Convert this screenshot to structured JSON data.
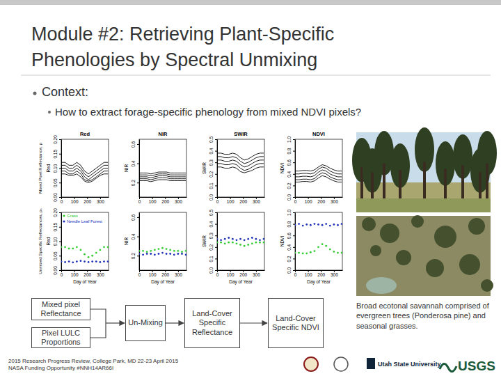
{
  "title": [
    "Module #2:  Retrieving Plant-Specific",
    "Phenologies by Spectral Unmixing"
  ],
  "bullets": [
    {
      "text": "Context:",
      "sub": [
        "How to extract forage-specific phenology from mixed NDVI pixels?"
      ]
    }
  ],
  "row_labels": [
    "Mixed Pixel Reflectance, ρ",
    "Unmixed Specific Reflectances, ρₛ"
  ],
  "chart_data": [
    {
      "type": "line",
      "title": "Red",
      "y_label": "Red",
      "color": "#000000",
      "x": [
        0,
        30,
        60,
        90,
        120,
        150,
        180,
        210,
        240,
        270,
        300,
        330,
        360
      ],
      "xlim": [
        0,
        365
      ],
      "xticks": [
        0,
        100,
        200,
        300
      ],
      "ylim": [
        0,
        0.2
      ],
      "yticks": [
        {
          "value": 0,
          "label": "0.00"
        },
        {
          "value": 0.05,
          "label": "0.05"
        },
        {
          "value": 0.1,
          "label": "0.10"
        },
        {
          "value": 0.15,
          "label": "0.15"
        },
        {
          "value": 0.2,
          "label": "0.20"
        }
      ],
      "series": [
        {
          "values": [
            0.11,
            0.11,
            0.1,
            0.1,
            0.11,
            0.1,
            0.08,
            0.07,
            0.08,
            0.09,
            0.1,
            0.11,
            0.11
          ]
        },
        {
          "values": [
            0.1,
            0.1,
            0.09,
            0.09,
            0.1,
            0.09,
            0.07,
            0.06,
            0.07,
            0.08,
            0.09,
            0.1,
            0.1
          ]
        },
        {
          "values": [
            0.09,
            0.09,
            0.08,
            0.08,
            0.09,
            0.08,
            0.06,
            0.055,
            0.06,
            0.07,
            0.08,
            0.09,
            0.09
          ]
        },
        {
          "values": [
            0.08,
            0.08,
            0.075,
            0.075,
            0.08,
            0.07,
            0.055,
            0.05,
            0.055,
            0.065,
            0.075,
            0.08,
            0.08
          ]
        },
        {
          "values": [
            0.12,
            0.12,
            0.11,
            0.11,
            0.12,
            0.11,
            0.09,
            0.08,
            0.09,
            0.1,
            0.11,
            0.12,
            0.12
          ]
        }
      ]
    },
    {
      "type": "line",
      "title": "NIR",
      "y_label": "NIR",
      "color": "#000000",
      "x": [
        0,
        30,
        60,
        90,
        120,
        150,
        180,
        210,
        240,
        270,
        300,
        330,
        360
      ],
      "xlim": [
        0,
        365
      ],
      "xticks": [
        0,
        100,
        200,
        300
      ],
      "ylim": [
        0.05,
        0.65
      ],
      "yticks": [
        0.2,
        0.4,
        0.6
      ],
      "series": [
        {
          "values": [
            0.26,
            0.26,
            0.26,
            0.25,
            0.26,
            0.27,
            0.27,
            0.27,
            0.26,
            0.26,
            0.26,
            0.26,
            0.26
          ]
        },
        {
          "values": [
            0.24,
            0.24,
            0.24,
            0.23,
            0.24,
            0.25,
            0.25,
            0.25,
            0.24,
            0.24,
            0.24,
            0.24,
            0.24
          ]
        },
        {
          "values": [
            0.28,
            0.28,
            0.28,
            0.27,
            0.28,
            0.29,
            0.29,
            0.29,
            0.28,
            0.28,
            0.28,
            0.28,
            0.28
          ]
        },
        {
          "values": [
            0.22,
            0.22,
            0.22,
            0.21,
            0.22,
            0.23,
            0.23,
            0.23,
            0.22,
            0.22,
            0.22,
            0.22,
            0.22
          ]
        },
        {
          "values": [
            0.3,
            0.3,
            0.3,
            0.29,
            0.3,
            0.31,
            0.31,
            0.31,
            0.3,
            0.3,
            0.3,
            0.3,
            0.3
          ]
        }
      ]
    },
    {
      "type": "line",
      "title": "SWIR",
      "y_label": "SWIR",
      "color": "#000000",
      "x": [
        0,
        30,
        60,
        90,
        120,
        150,
        180,
        210,
        240,
        270,
        300,
        330,
        360
      ],
      "xlim": [
        0,
        365
      ],
      "xticks": [
        0,
        100,
        200,
        300
      ],
      "ylim": [
        0,
        0.5
      ],
      "yticks": [
        {
          "value": 0,
          "label": "0.0"
        },
        0.1,
        0.2,
        0.3,
        0.4,
        0.5
      ],
      "series": [
        {
          "values": [
            0.32,
            0.32,
            0.31,
            0.31,
            0.32,
            0.31,
            0.28,
            0.26,
            0.27,
            0.29,
            0.31,
            0.32,
            0.32
          ]
        },
        {
          "values": [
            0.29,
            0.29,
            0.28,
            0.28,
            0.29,
            0.28,
            0.25,
            0.23,
            0.24,
            0.26,
            0.28,
            0.29,
            0.29
          ]
        },
        {
          "values": [
            0.35,
            0.35,
            0.34,
            0.34,
            0.35,
            0.34,
            0.31,
            0.29,
            0.3,
            0.32,
            0.34,
            0.35,
            0.35
          ]
        },
        {
          "values": [
            0.26,
            0.26,
            0.25,
            0.25,
            0.26,
            0.25,
            0.22,
            0.21,
            0.22,
            0.23,
            0.25,
            0.26,
            0.26
          ]
        },
        {
          "values": [
            0.38,
            0.38,
            0.37,
            0.37,
            0.38,
            0.37,
            0.34,
            0.32,
            0.33,
            0.35,
            0.37,
            0.38,
            0.38
          ]
        }
      ]
    },
    {
      "type": "line",
      "title": "NDVI",
      "y_label": "NDVI",
      "color": "#000000",
      "x": [
        0,
        30,
        60,
        90,
        120,
        150,
        180,
        210,
        240,
        270,
        300,
        330,
        360
      ],
      "xlim": [
        0,
        365
      ],
      "xticks": [
        0,
        100,
        200,
        300
      ],
      "ylim": [
        0,
        1
      ],
      "yticks": [
        {
          "value": 0,
          "label": "0.0"
        },
        0.2,
        0.4,
        0.6,
        0.8,
        {
          "value": 1,
          "label": "1.0"
        }
      ],
      "series": [
        {
          "values": [
            0.4,
            0.4,
            0.41,
            0.41,
            0.4,
            0.42,
            0.48,
            0.52,
            0.5,
            0.45,
            0.42,
            0.4,
            0.4
          ]
        },
        {
          "values": [
            0.35,
            0.35,
            0.36,
            0.36,
            0.35,
            0.37,
            0.43,
            0.47,
            0.45,
            0.4,
            0.37,
            0.35,
            0.35
          ]
        },
        {
          "values": [
            0.3,
            0.3,
            0.31,
            0.31,
            0.3,
            0.32,
            0.38,
            0.42,
            0.4,
            0.35,
            0.32,
            0.3,
            0.3
          ]
        },
        {
          "values": [
            0.45,
            0.45,
            0.46,
            0.46,
            0.45,
            0.47,
            0.52,
            0.56,
            0.54,
            0.5,
            0.47,
            0.45,
            0.45
          ]
        },
        {
          "values": [
            0.26,
            0.26,
            0.27,
            0.27,
            0.26,
            0.28,
            0.33,
            0.37,
            0.35,
            0.31,
            0.28,
            0.26,
            0.26
          ]
        }
      ]
    },
    {
      "type": "scatter",
      "marker": "circle",
      "y_label": "Red",
      "x_label": "Day of Year",
      "legend": "top-left",
      "x": [
        0,
        30,
        60,
        90,
        120,
        150,
        180,
        210,
        240,
        270,
        300,
        330,
        360
      ],
      "xlim": [
        0,
        365
      ],
      "xticks": [
        0,
        100,
        200,
        300
      ],
      "ylim": [
        0,
        0.2
      ],
      "yticks": [
        {
          "value": 0,
          "label": "0.00"
        },
        {
          "value": 0.05,
          "label": "0.05"
        },
        {
          "value": 0.1,
          "label": "0.10"
        },
        {
          "value": 0.15,
          "label": "0.15"
        },
        {
          "value": 0.2,
          "label": "0.20"
        }
      ],
      "series": [
        {
          "name": "Grass",
          "color": "#33cc33",
          "values": [
            0.08,
            0.08,
            0.075,
            0.075,
            0.08,
            0.07,
            0.055,
            0.045,
            0.05,
            0.06,
            0.07,
            0.08,
            0.08
          ]
        },
        {
          "name": "Needle Leaf Forest",
          "color": "#2233bb",
          "values": [
            0.03,
            0.028,
            0.03,
            0.027,
            0.03,
            0.032,
            0.03,
            0.028,
            0.03,
            0.03,
            0.028,
            0.03,
            0.03
          ]
        }
      ]
    },
    {
      "type": "scatter",
      "marker": "circle",
      "y_label": "NIR",
      "x_label": "Day of Year",
      "x": [
        0,
        30,
        60,
        90,
        120,
        150,
        180,
        210,
        240,
        270,
        300,
        330,
        360
      ],
      "xlim": [
        0,
        365
      ],
      "xticks": [
        0,
        100,
        200,
        300
      ],
      "ylim": [
        0.05,
        0.65
      ],
      "yticks": [
        0.2,
        0.4,
        0.6
      ],
      "series": [
        {
          "color": "#2233bb",
          "values": [
            0.22,
            0.21,
            0.22,
            0.22,
            0.21,
            0.22,
            0.23,
            0.22,
            0.22,
            0.21,
            0.22,
            0.22,
            0.21
          ]
        },
        {
          "color": "#33cc33",
          "values": [
            0.25,
            0.25,
            0.24,
            0.25,
            0.26,
            0.27,
            0.28,
            0.27,
            0.26,
            0.25,
            0.25,
            0.24,
            0.25
          ]
        }
      ]
    },
    {
      "type": "scatter",
      "marker": "circle",
      "y_label": "SWIR",
      "x_label": "Day of Year",
      "x": [
        0,
        30,
        60,
        90,
        120,
        150,
        180,
        210,
        240,
        270,
        300,
        330,
        360
      ],
      "xlim": [
        0,
        365
      ],
      "xticks": [
        0,
        100,
        200,
        300
      ],
      "ylim": [
        0,
        0.5
      ],
      "yticks": [
        {
          "value": 0,
          "label": "0.0"
        },
        0.1,
        0.2,
        0.3,
        0.4,
        0.5
      ],
      "series": [
        {
          "color": "#2233bb",
          "values": [
            0.27,
            0.26,
            0.27,
            0.28,
            0.27,
            0.26,
            0.27,
            0.26,
            0.27,
            0.28,
            0.27,
            0.26,
            0.27
          ]
        },
        {
          "color": "#33cc33",
          "values": [
            0.24,
            0.24,
            0.23,
            0.24,
            0.24,
            0.23,
            0.22,
            0.21,
            0.22,
            0.23,
            0.24,
            0.24,
            0.24
          ]
        }
      ]
    },
    {
      "type": "scatter",
      "marker": "circle",
      "y_label": "NDVI",
      "x_label": "Day of Year",
      "x": [
        0,
        30,
        60,
        90,
        120,
        150,
        180,
        210,
        240,
        270,
        300,
        330,
        360
      ],
      "xlim": [
        0,
        365
      ],
      "xticks": [
        0,
        100,
        200,
        300
      ],
      "ylim": [
        0,
        1
      ],
      "yticks": [
        {
          "value": 0,
          "label": "0.0"
        },
        0.2,
        0.4,
        0.6,
        0.8,
        {
          "value": 1,
          "label": "1.0"
        }
      ],
      "series": [
        {
          "color": "#2233bb",
          "values": [
            0.78,
            0.8,
            0.77,
            0.79,
            0.78,
            0.8,
            0.79,
            0.78,
            0.8,
            0.77,
            0.79,
            0.78,
            0.8
          ]
        },
        {
          "color": "#33cc33",
          "values": [
            0.3,
            0.3,
            0.29,
            0.29,
            0.31,
            0.33,
            0.4,
            0.45,
            0.42,
            0.36,
            0.32,
            0.3,
            0.3
          ]
        }
      ]
    }
  ],
  "diagram": {
    "inputs": [
      "Mixed pixel Reflectance",
      "Pixel LULC Proportions"
    ],
    "process": "Un-Mixing",
    "outputs": [
      "Land-Cover Specific Reflectance",
      "Land-Cover Specific NDVI"
    ]
  },
  "caption": "Broad ecotonal savannah comprised of evergreen trees (Ponderosa pine) and seasonal grasses.",
  "footer": [
    "2015 Research Progress Review, College Park, MD 22-23 April 2015",
    "NASA Funding Opportunity #NNH14AR66I"
  ],
  "logos": [
    "Utah State University",
    "USGS"
  ]
}
